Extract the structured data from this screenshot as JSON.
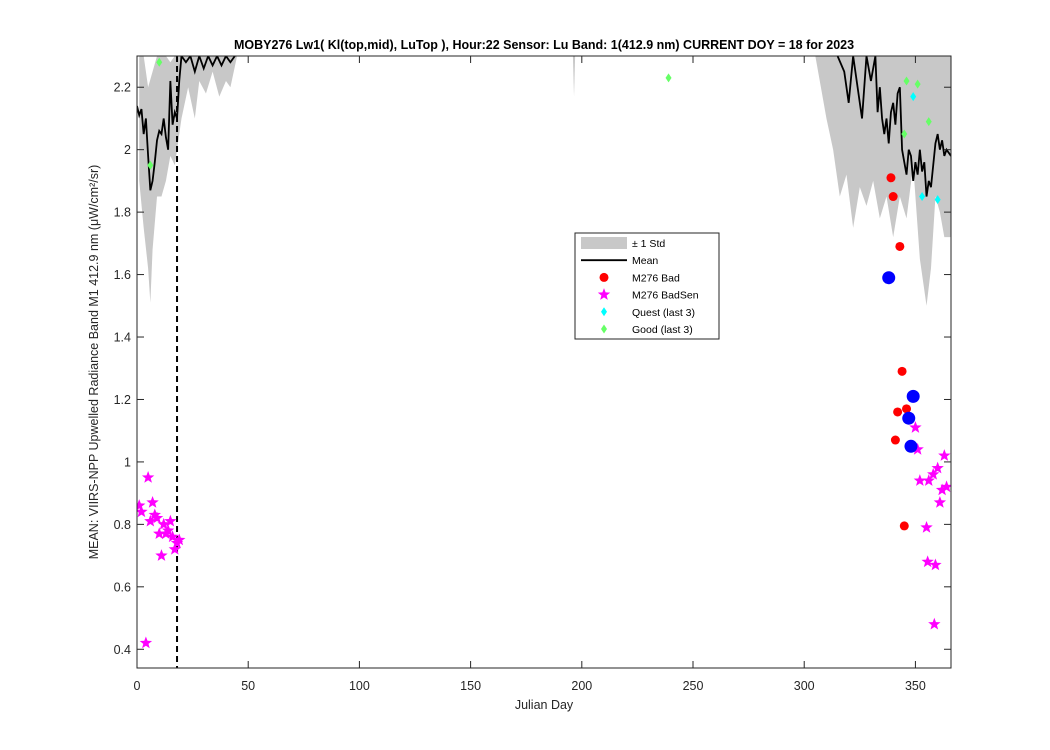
{
  "chart_data": {
    "type": "line",
    "title": "MOBY276   Lw1( Kl(top,mid), LuTop ),   Hour:22 Sensor: Lu Band: 1(412.9 nm)   CURRENT DOY = 18 for 2023",
    "xlabel": "Julian Day",
    "ylabel": "MEAN: VIIRS-NPP Upwelled Radiance Band M1 412.9 nm (μW/cm²/sr)",
    "xlim": [
      0,
      366
    ],
    "ylim": [
      0.34,
      2.3
    ],
    "x_ticks": [
      0,
      50,
      100,
      150,
      200,
      250,
      300,
      350
    ],
    "y_ticks": [
      0.4,
      0.6,
      0.8,
      1.0,
      1.2,
      1.4,
      1.6,
      1.8,
      2.0,
      2.2
    ],
    "x_tick_labels": [
      "0",
      "50",
      "100",
      "150",
      "200",
      "250",
      "300",
      "350"
    ],
    "y_tick_labels": [
      "0.4",
      "0.6",
      "0.8",
      "1",
      "1.2",
      "1.4",
      "1.6",
      "1.8",
      "2",
      "2.2"
    ],
    "current_doy": 18,
    "grid": false,
    "legend_position": "center-right",
    "legend": [
      {
        "key": "std",
        "label": "± 1 Std"
      },
      {
        "key": "mean",
        "label": "Mean"
      },
      {
        "key": "bad",
        "label": "M276 Bad"
      },
      {
        "key": "badsen",
        "label": "M276 BadSen"
      },
      {
        "key": "quest",
        "label": "Quest (last 3)"
      },
      {
        "key": "good",
        "label": "Good (last 3)"
      }
    ],
    "colors": {
      "std_band": "#c8c8c8",
      "mean": "#000000",
      "bad": "#ff0000",
      "bad_blue": "#0000ff",
      "badsen": "#ff00ff",
      "quest": "#00ffff",
      "good": "#66ff66"
    },
    "std_band_segments": [
      {
        "upper": [
          [
            1,
            2.3
          ],
          [
            3,
            2.3
          ],
          [
            5,
            2.2
          ],
          [
            7,
            2.25
          ],
          [
            9,
            2.3
          ],
          [
            11,
            2.3
          ],
          [
            13,
            2.3
          ],
          [
            15,
            2.28
          ],
          [
            17,
            2.3
          ],
          [
            45,
            2.3
          ]
        ],
        "lower": [
          [
            1,
            1.9
          ],
          [
            3,
            1.75
          ],
          [
            5,
            1.62
          ],
          [
            6,
            1.51
          ],
          [
            7,
            1.68
          ],
          [
            9,
            1.85
          ],
          [
            11,
            1.85
          ],
          [
            13,
            1.9
          ],
          [
            15,
            1.98
          ],
          [
            17,
            1.95
          ],
          [
            20,
            2.1
          ],
          [
            23,
            2.2
          ],
          [
            26,
            2.1
          ],
          [
            28,
            2.22
          ],
          [
            31,
            2.18
          ],
          [
            34,
            2.25
          ],
          [
            37,
            2.17
          ],
          [
            40,
            2.22
          ],
          [
            42,
            2.2
          ],
          [
            45,
            2.3
          ]
        ]
      },
      {
        "upper": [
          [
            196,
            2.3
          ],
          [
            197,
            2.3
          ]
        ],
        "lower": [
          [
            196,
            2.3
          ],
          [
            196.5,
            2.17
          ],
          [
            197,
            2.3
          ]
        ]
      },
      {
        "upper": [
          [
            305,
            2.3
          ],
          [
            366,
            2.3
          ]
        ],
        "lower": [
          [
            305,
            2.3
          ],
          [
            310,
            2.1
          ],
          [
            313,
            2.0
          ],
          [
            316,
            1.85
          ],
          [
            319,
            1.92
          ],
          [
            322,
            1.75
          ],
          [
            325,
            1.88
          ],
          [
            328,
            1.82
          ],
          [
            331,
            1.9
          ],
          [
            334,
            1.78
          ],
          [
            337,
            1.85
          ],
          [
            340,
            1.72
          ],
          [
            343,
            1.85
          ],
          [
            346,
            1.78
          ],
          [
            349,
            1.95
          ],
          [
            352,
            1.65
          ],
          [
            355,
            1.5
          ],
          [
            357,
            1.62
          ],
          [
            359,
            1.85
          ],
          [
            361,
            1.8
          ],
          [
            363,
            1.72
          ],
          [
            366,
            1.72
          ]
        ]
      }
    ],
    "mean_segments": [
      [
        [
          0,
          2.14
        ],
        [
          1,
          2.11
        ],
        [
          2,
          2.13
        ],
        [
          3,
          2.05
        ],
        [
          4,
          2.1
        ],
        [
          5,
          1.98
        ],
        [
          6,
          1.87
        ],
        [
          7,
          1.9
        ],
        [
          8,
          1.96
        ],
        [
          9,
          2.03
        ],
        [
          10,
          2.06
        ],
        [
          11,
          2.05
        ],
        [
          12,
          2.1
        ],
        [
          13,
          2.04
        ],
        [
          14,
          2.0
        ],
        [
          15,
          2.22
        ],
        [
          16,
          2.08
        ],
        [
          17,
          2.12
        ],
        [
          18,
          2.1
        ],
        [
          19,
          2.22
        ],
        [
          20,
          2.3
        ],
        [
          22,
          2.28
        ],
        [
          24,
          2.3
        ],
        [
          26,
          2.25
        ],
        [
          28,
          2.3
        ],
        [
          30,
          2.26
        ],
        [
          32,
          2.3
        ],
        [
          34,
          2.27
        ],
        [
          36,
          2.3
        ],
        [
          38,
          2.27
        ],
        [
          40,
          2.3
        ],
        [
          42,
          2.28
        ],
        [
          44,
          2.3
        ]
      ],
      [
        [
          315,
          2.3
        ],
        [
          318,
          2.25
        ],
        [
          320,
          2.15
        ],
        [
          322,
          2.3
        ],
        [
          324,
          2.2
        ],
        [
          326,
          2.1
        ],
        [
          328,
          2.3
        ],
        [
          330,
          2.22
        ],
        [
          332,
          2.3
        ],
        [
          333,
          2.12
        ],
        [
          334,
          2.2
        ],
        [
          335,
          2.1
        ],
        [
          336,
          2.05
        ],
        [
          337,
          2.1
        ],
        [
          338,
          2.02
        ],
        [
          339,
          2.12
        ],
        [
          340,
          2.15
        ],
        [
          341,
          2.08
        ],
        [
          342,
          2.18
        ],
        [
          343,
          2.2
        ],
        [
          344,
          2.0
        ],
        [
          345,
          1.96
        ],
        [
          346,
          1.92
        ],
        [
          347,
          2.0
        ],
        [
          348,
          1.98
        ],
        [
          349,
          1.9
        ],
        [
          350,
          1.96
        ],
        [
          351,
          1.92
        ],
        [
          352,
          2.0
        ],
        [
          353,
          1.93
        ],
        [
          354,
          1.96
        ],
        [
          355,
          1.85
        ],
        [
          356,
          1.9
        ],
        [
          357,
          1.88
        ],
        [
          358,
          1.95
        ],
        [
          359,
          2.02
        ],
        [
          360,
          2.05
        ],
        [
          361,
          2.0
        ],
        [
          362,
          2.03
        ],
        [
          363,
          1.98
        ],
        [
          364,
          2.0
        ],
        [
          366,
          1.98
        ]
      ]
    ],
    "bad_points": [
      [
        339,
        1.91
      ],
      [
        340,
        1.85
      ],
      [
        343,
        1.69
      ],
      [
        341,
        1.07
      ],
      [
        342,
        1.16
      ],
      [
        344,
        1.29
      ],
      [
        346,
        1.17
      ],
      [
        345,
        0.795
      ]
    ],
    "bad_blue_points": [
      [
        338,
        1.59
      ],
      [
        349,
        1.21
      ],
      [
        347,
        1.14
      ],
      [
        348,
        1.05
      ]
    ],
    "badsen_points": [
      [
        1,
        0.86
      ],
      [
        2,
        0.84
      ],
      [
        4,
        0.42
      ],
      [
        5,
        0.95
      ],
      [
        6,
        0.81
      ],
      [
        7,
        0.87
      ],
      [
        8,
        0.83
      ],
      [
        9,
        0.82
      ],
      [
        10,
        0.77
      ],
      [
        11,
        0.7
      ],
      [
        12,
        0.8
      ],
      [
        13,
        0.77
      ],
      [
        14,
        0.78
      ],
      [
        15,
        0.81
      ],
      [
        16,
        0.76
      ],
      [
        17,
        0.72
      ],
      [
        18,
        0.74
      ],
      [
        19,
        0.75
      ],
      [
        350,
        1.11
      ],
      [
        351,
        1.04
      ],
      [
        352,
        0.94
      ],
      [
        355,
        0.79
      ],
      [
        355.5,
        0.68
      ],
      [
        356,
        0.94
      ],
      [
        358,
        0.96
      ],
      [
        358.5,
        0.48
      ],
      [
        359,
        0.67
      ],
      [
        360,
        0.98
      ],
      [
        361,
        0.87
      ],
      [
        362,
        0.91
      ],
      [
        363,
        1.02
      ],
      [
        364,
        0.92
      ]
    ],
    "quest_points": [
      [
        349,
        2.17
      ],
      [
        353,
        1.85
      ],
      [
        360,
        1.84
      ]
    ],
    "good_points": [
      [
        10,
        2.28
      ],
      [
        6,
        1.95
      ],
      [
        239,
        2.23
      ],
      [
        345,
        2.05
      ],
      [
        346,
        2.22
      ],
      [
        351,
        2.21
      ],
      [
        356,
        2.09
      ]
    ]
  }
}
